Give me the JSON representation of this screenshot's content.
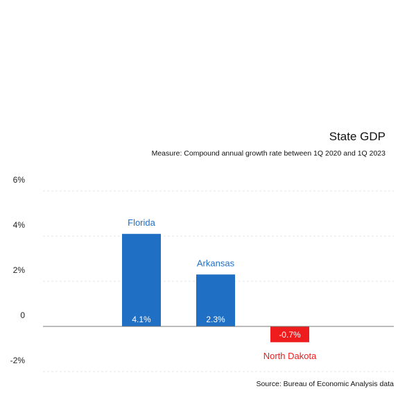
{
  "chart_data": {
    "type": "bar",
    "title": "State GDP",
    "subtitle": "Measure: Compound annual growth rate between 1Q 2020 and 1Q 2023",
    "source": "Source: Bureau of Economic Analysis data",
    "categories": [
      "Florida",
      "Arkansas",
      "North Dakota"
    ],
    "values": [
      4.1,
      2.3,
      -0.7
    ],
    "value_labels": [
      "4.1%",
      "2.3%",
      "-0.7%"
    ],
    "bar_colors": [
      "#1f6fc4",
      "#1f6fc4",
      "#ee1c1c"
    ],
    "label_colors": [
      "#1f6fc4",
      "#1f6fc4",
      "#ee1c1c"
    ],
    "yticks": [
      6,
      4,
      2,
      0,
      -2
    ],
    "ytick_labels": [
      "6%",
      "4%",
      "2%",
      "0",
      "-2%"
    ],
    "ylim": [
      -2,
      6
    ],
    "grid": true,
    "xlabel": "",
    "ylabel": ""
  }
}
